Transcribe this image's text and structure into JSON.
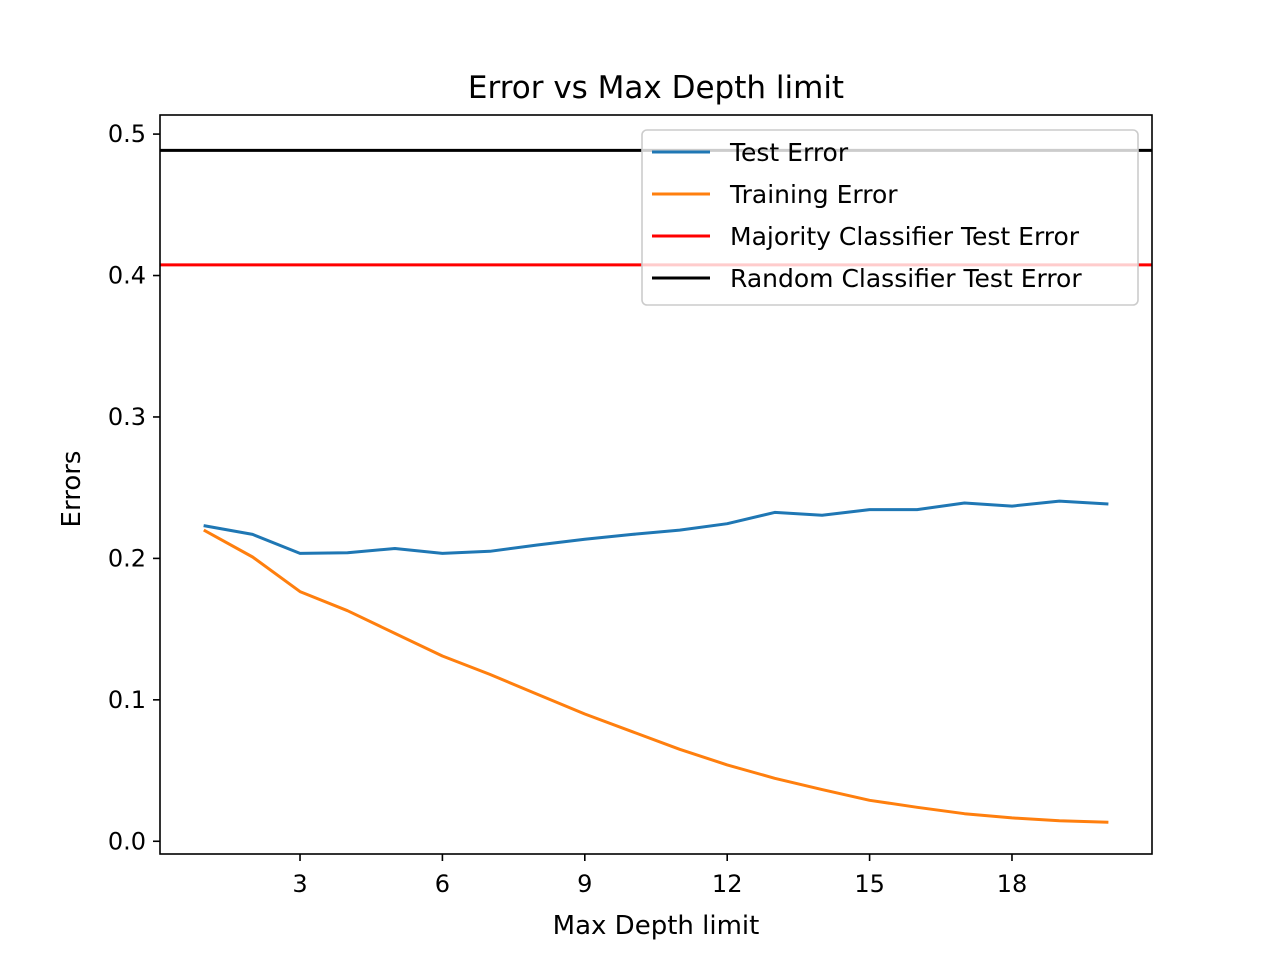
{
  "chart_data": {
    "type": "line",
    "title": "Error vs Max Depth limit",
    "xlabel": "Max Depth limit",
    "ylabel": "Errors",
    "xlim": [
      0.05,
      20.95
    ],
    "ylim": [
      -0.009,
      0.5135
    ],
    "xticks": [
      3,
      6,
      9,
      12,
      15,
      18
    ],
    "xtick_labels": [
      "3",
      "6",
      "9",
      "12",
      "15",
      "18"
    ],
    "yticks": [
      0.0,
      0.1,
      0.2,
      0.3,
      0.4,
      0.5
    ],
    "ytick_labels": [
      "0.0",
      "0.1",
      "0.2",
      "0.3",
      "0.4",
      "0.5"
    ],
    "grid": false,
    "legend_position": "top-right",
    "x": [
      1,
      2,
      3,
      4,
      5,
      6,
      7,
      8,
      9,
      10,
      11,
      12,
      13,
      14,
      15,
      16,
      17,
      18,
      19,
      20
    ],
    "series": [
      {
        "name": "Test Error",
        "color": "#1f77b4",
        "values": [
          0.223,
          0.217,
          0.2035,
          0.204,
          0.207,
          0.2035,
          0.205,
          0.2095,
          0.2135,
          0.217,
          0.22,
          0.2245,
          0.2325,
          0.2305,
          0.2345,
          0.2345,
          0.2392,
          0.237,
          0.2405,
          0.2385
        ]
      },
      {
        "name": "Training Error",
        "color": "#ff7f0e",
        "values": [
          0.2195,
          0.201,
          0.1765,
          0.163,
          0.147,
          0.131,
          0.118,
          0.104,
          0.09,
          0.0775,
          0.065,
          0.054,
          0.0445,
          0.0365,
          0.029,
          0.024,
          0.0195,
          0.0165,
          0.0145,
          0.0135
        ]
      },
      {
        "name": "Majority Classifier Test Error",
        "color": "#ff0000",
        "constant": 0.4075
      },
      {
        "name": "Random Classifier Test Error",
        "color": "#000000",
        "constant": 0.4885
      }
    ]
  }
}
